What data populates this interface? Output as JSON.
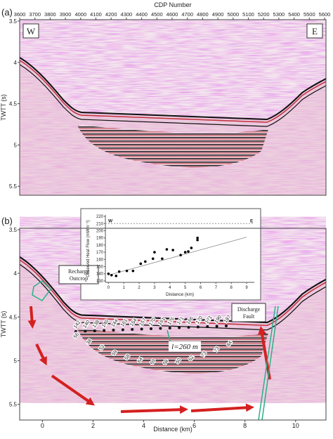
{
  "chart_data": [
    {
      "type": "seismic",
      "panel_label": "(a)",
      "x_label": "CDP Number",
      "y_label": "TWTT (s)",
      "xlim": [
        3600,
        5600
      ],
      "xticks": [
        3600,
        3700,
        3800,
        3900,
        4000,
        4100,
        4200,
        4300,
        4400,
        4500,
        4600,
        4700,
        4800,
        4900,
        5000,
        5100,
        5200,
        5300,
        5400,
        5500,
        5600
      ],
      "ylim": [
        3.5,
        5.6
      ],
      "yticks": [
        3.5,
        4.0,
        4.5,
        5.0,
        5.5
      ],
      "x_axis": "top",
      "annotations": [
        "W",
        "E"
      ]
    },
    {
      "type": "seismic",
      "panel_label": "(b)",
      "x_label": "Distance (km)",
      "y_label": "TWTT (s)",
      "xlim": [
        -0.9,
        11.2
      ],
      "xticks": [
        0,
        2,
        4,
        6,
        8,
        10
      ],
      "ylim": [
        3.5,
        5.68
      ],
      "yticks": [
        3.5,
        4.0,
        4.5,
        5.0,
        5.5
      ],
      "x_axis": "bottom",
      "annotations": [
        "Recharge Outcrop",
        "Discharge Fault",
        "l=260 m"
      ],
      "upper_labels": [
        142,
        140,
        138,
        140,
        144,
        161,
        154,
        157,
        170,
        161,
        176,
        171,
        166,
        170,
        171,
        190,
        187
      ],
      "lower_labels": [
        56,
        38,
        53,
        59,
        58,
        64,
        69,
        68,
        50,
        62,
        73,
        73,
        84
      ]
    },
    {
      "type": "scatter",
      "x_label": "Distance (km)",
      "y_label": "Observed Heat Flow (mWm⁻²)",
      "xlim": [
        -0.2,
        9.5
      ],
      "xticks": [
        0,
        1,
        2,
        3,
        4,
        5,
        6,
        7,
        8,
        9
      ],
      "ylim": [
        128,
        222
      ],
      "yticks": [
        130,
        140,
        150,
        160,
        170,
        180,
        190,
        200,
        210,
        220
      ],
      "x": [
        0,
        0.2,
        0.5,
        0.7,
        1.2,
        1.6,
        2.1,
        2.4,
        2.9,
        3.0,
        3.5,
        3.8,
        4.2,
        4.7,
        5.0,
        5.2,
        5.4,
        5.8,
        5.8
      ],
      "values": [
        140,
        138,
        137,
        143,
        144,
        144,
        154,
        157,
        161,
        170,
        161,
        174,
        173,
        166,
        170,
        171,
        176,
        187,
        190
      ],
      "color": "#000000",
      "trend_line": {
        "x": [
          0,
          9
        ],
        "values": [
          138,
          191
        ]
      },
      "reference_line": 210,
      "annotations": [
        "W",
        "E"
      ]
    }
  ]
}
